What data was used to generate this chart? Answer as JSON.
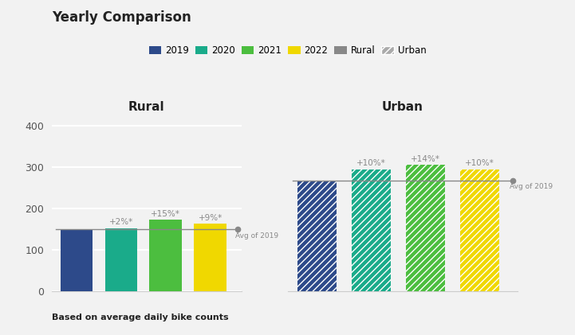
{
  "title": "Yearly Comparison",
  "subtitle_rural": "Rural",
  "subtitle_urban": "Urban",
  "xlabel_note": "Based on average daily bike counts",
  "years": [
    "2019",
    "2020",
    "2021",
    "2022"
  ],
  "colors": [
    "#2d4a8a",
    "#1aab8a",
    "#4cbe3f",
    "#f0d800"
  ],
  "rural_values": [
    150,
    153,
    173,
    164
  ],
  "urban_values": [
    268,
    295,
    306,
    295
  ],
  "rural_avg2019": 150,
  "urban_avg2019": 268,
  "rural_labels": [
    "",
    "+2%*",
    "+15%*",
    "+9%*"
  ],
  "urban_labels": [
    "",
    "+10%*",
    "+14%*",
    "+10%*"
  ],
  "ylim": [
    0,
    420
  ],
  "yticks": [
    0,
    100,
    200,
    300,
    400
  ],
  "background_color": "#f2f2f2",
  "grid_color": "#ffffff",
  "avg_line_color": "#888888",
  "text_color": "#888888",
  "bar_width": 0.72,
  "figsize": [
    7.21,
    4.21
  ],
  "dpi": 100
}
